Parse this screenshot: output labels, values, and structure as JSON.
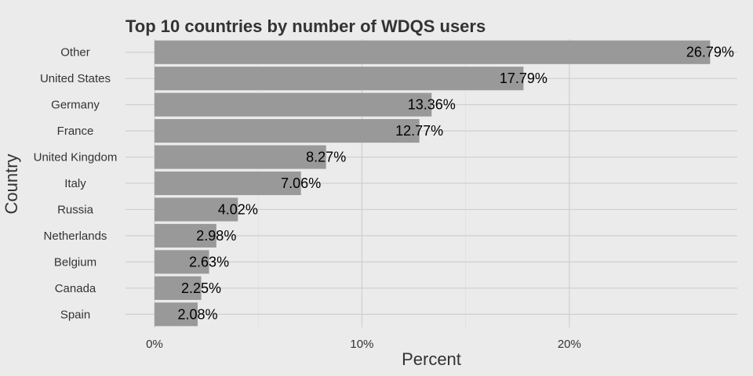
{
  "chart_data": {
    "type": "bar",
    "orientation": "horizontal",
    "title": "Top 10 countries by number of WDQS users",
    "xlabel": "Percent",
    "ylabel": "Country",
    "categories": [
      "Other",
      "United States",
      "Germany",
      "France",
      "United Kingdom",
      "Italy",
      "Russia",
      "Netherlands",
      "Belgium",
      "Canada",
      "Spain"
    ],
    "values": [
      26.79,
      17.79,
      13.36,
      12.77,
      8.27,
      7.06,
      4.02,
      2.98,
      2.63,
      2.25,
      2.08
    ],
    "data_labels": [
      "26.79%",
      "17.79%",
      "13.36%",
      "12.77%",
      "8.27%",
      "7.06%",
      "4.02%",
      "2.98%",
      "2.63%",
      "2.25%",
      "2.08%"
    ],
    "xticks": [
      0,
      10,
      20
    ],
    "xtick_labels": [
      "0%",
      "10%",
      "20%"
    ],
    "xlim": [
      -1.4,
      28.1
    ],
    "grid": true,
    "legend": "none",
    "colors": {
      "bar": "#999999",
      "background": "#ebebeb",
      "grid": "#cfcfcf",
      "text": "#333333"
    }
  }
}
